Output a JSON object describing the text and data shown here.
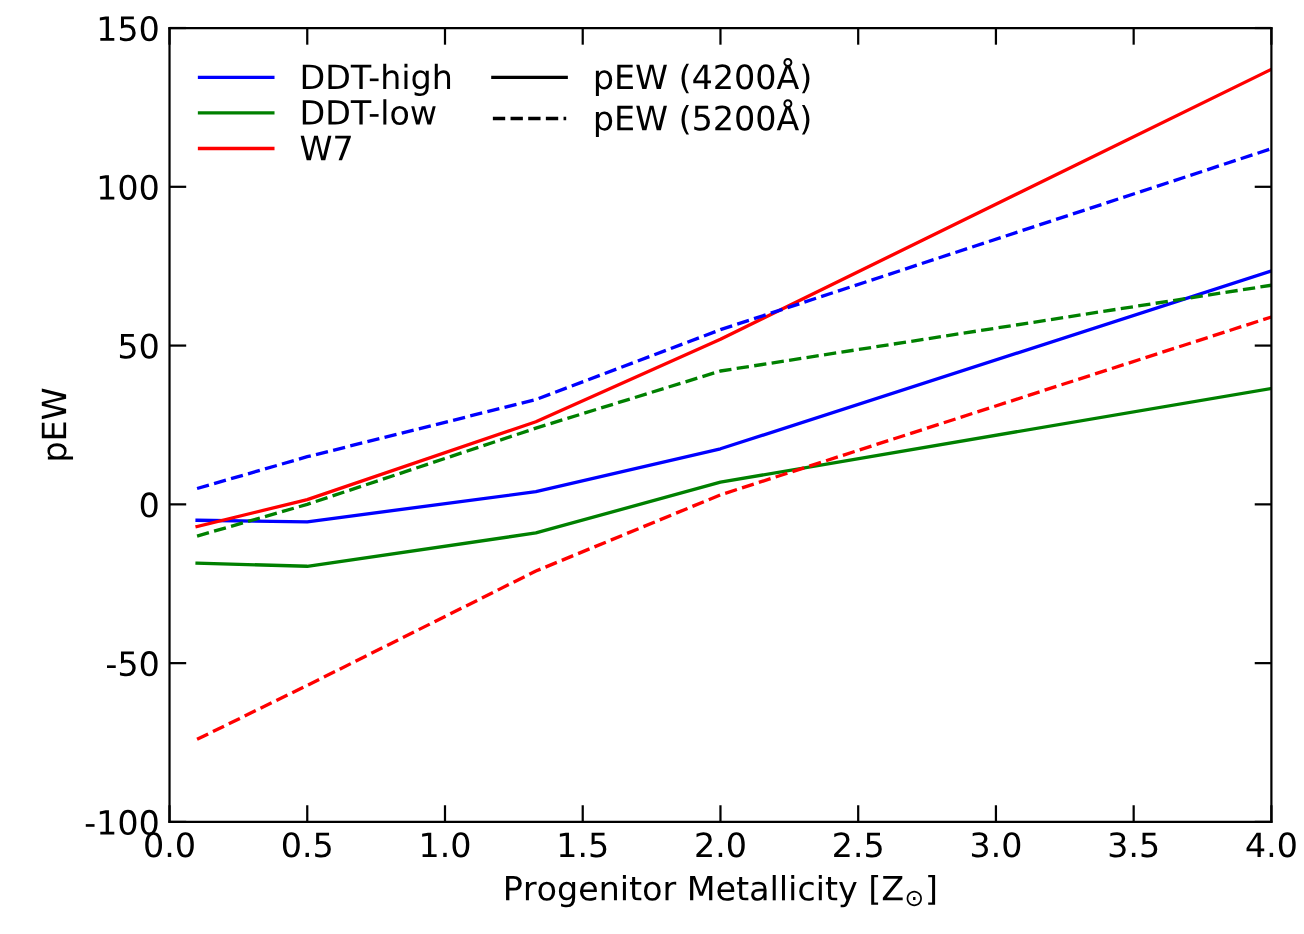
{
  "chart_data": {
    "type": "line",
    "xlabel": "Progenitor Metallicity [Z$_{⊙}$]",
    "ylabel": "pEW",
    "x": [
      0.1,
      0.5,
      1.33,
      2.0,
      4.0
    ],
    "series": [
      {
        "name": "DDT-high",
        "color": "#0000ff",
        "line_style": "solid",
        "values": [
          -5,
          -5.5,
          4,
          17.5,
          73.5
        ]
      },
      {
        "name": "DDT-low",
        "color": "#008000",
        "line_style": "solid",
        "values": [
          -18.5,
          -19.5,
          -9,
          7,
          36.5
        ]
      },
      {
        "name": "W7",
        "color": "#ff0000",
        "line_style": "solid",
        "values": [
          -7,
          1.5,
          26,
          52,
          137
        ]
      },
      {
        "name": "pEW (4200Å)",
        "color": "#000000",
        "line_style": "solid",
        "values": [
          null,
          null,
          null,
          null,
          null
        ]
      },
      {
        "name": "pEW (5200Å)",
        "color": "#000000",
        "line_style": "dashed",
        "values": [
          null,
          null,
          null,
          null,
          null
        ]
      },
      {
        "color": "#0000ff",
        "line_style": "dashed",
        "values": [
          5,
          15,
          33,
          55,
          112
        ]
      },
      {
        "color": "#008000",
        "line_style": "dashed",
        "values": [
          -10,
          0,
          24,
          42,
          69
        ]
      },
      {
        "color": "#ff0000",
        "line_style": "dashed",
        "values": [
          -74,
          -57,
          -21,
          3,
          59
        ]
      }
    ],
    "xlim": [
      0,
      4
    ],
    "xticks": [
      {
        "value": 0,
        "label": "0.0"
      },
      {
        "value": 0.5,
        "label": "0.5"
      },
      {
        "value": 1,
        "label": "1.0"
      },
      {
        "value": 1.5,
        "label": "1.5"
      },
      {
        "value": 2,
        "label": "2.0"
      },
      {
        "value": 2.5,
        "label": "2.5"
      },
      {
        "value": 3,
        "label": "3.0"
      },
      {
        "value": 3.5,
        "label": "3.5"
      },
      {
        "value": 4,
        "label": "4.0"
      }
    ],
    "ylim": [
      -100,
      150
    ],
    "yticks": [
      -100,
      -50,
      0,
      50,
      100,
      150
    ],
    "grid": false,
    "legend": "top left"
  }
}
